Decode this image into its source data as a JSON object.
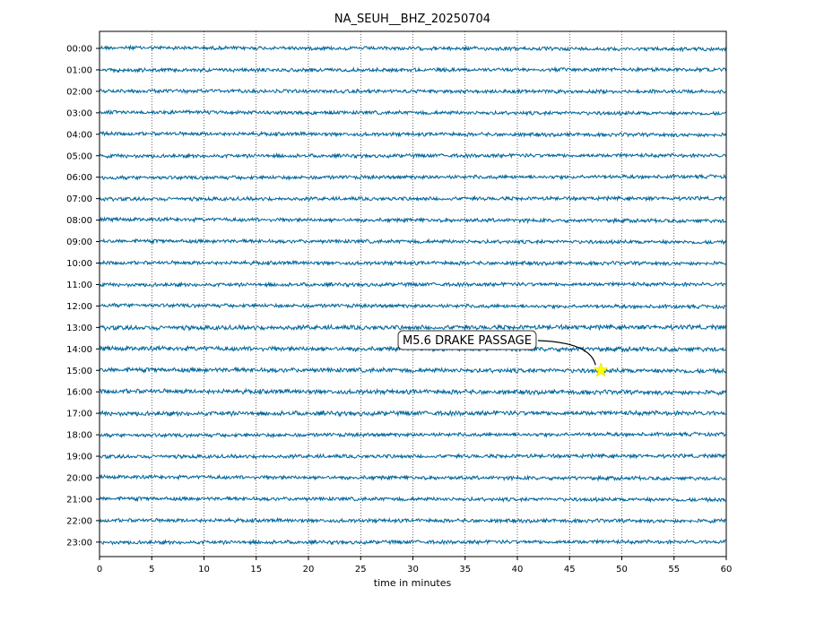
{
  "chart_data": {
    "type": "line",
    "title": "NA_SEUH__BHZ_20250704",
    "xlabel": "time in minutes",
    "ylabel": "",
    "xlim": [
      0,
      60
    ],
    "x_ticks": [
      0,
      5,
      10,
      15,
      20,
      25,
      30,
      35,
      40,
      45,
      50,
      55,
      60
    ],
    "row_labels": [
      "00:00",
      "01:00",
      "02:00",
      "03:00",
      "04:00",
      "05:00",
      "06:00",
      "07:00",
      "08:00",
      "09:00",
      "10:00",
      "11:00",
      "12:00",
      "13:00",
      "14:00",
      "15:00",
      "16:00",
      "17:00",
      "18:00",
      "19:00",
      "20:00",
      "21:00",
      "22:00",
      "23:00"
    ],
    "grid": "vertical dotted at each x tick",
    "trace_color": "#00679a",
    "event": {
      "label": "M5.6 DRAKE PASSAGE",
      "time_minutes": 48,
      "hour_row": "15:00",
      "marker": "star",
      "marker_color": "#ffff00"
    }
  }
}
